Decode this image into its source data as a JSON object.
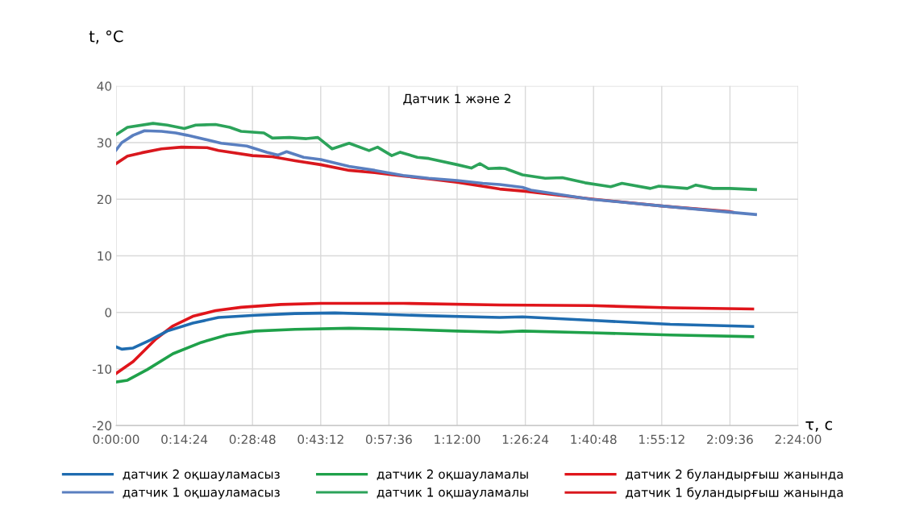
{
  "chart_data": {
    "type": "line",
    "title": "Датчик 1 және 2",
    "xlabel": "τ, с",
    "ylabel": "t, °С",
    "xlim": [
      0,
      2.4
    ],
    "xticks": [
      {
        "value": 0,
        "label": "0:00:00"
      },
      {
        "value": 0.24,
        "label": "0:14:24"
      },
      {
        "value": 0.48,
        "label": "0:28:48"
      },
      {
        "value": 0.72,
        "label": "0:43:12"
      },
      {
        "value": 0.96,
        "label": "0:57:36"
      },
      {
        "value": 1.2,
        "label": "1:12:00"
      },
      {
        "value": 1.44,
        "label": "1:26:24"
      },
      {
        "value": 1.68,
        "label": "1:40:48"
      },
      {
        "value": 1.92,
        "label": "1:55:12"
      },
      {
        "value": 2.16,
        "label": "2:09:36"
      },
      {
        "value": 2.4,
        "label": "2:24:00"
      }
    ],
    "ylim": [
      -20,
      40
    ],
    "yticks": [
      -20,
      -10,
      0,
      10,
      20,
      30,
      40
    ],
    "grid": true,
    "legend": "bottom",
    "line_style": "solid",
    "marker": "none",
    "series": [
      {
        "name": "датчик 2 оқшауламасыз",
        "color": "#1f6cb0",
        "x": [
          0,
          0.02,
          0.06,
          0.12,
          0.18,
          0.27,
          0.36,
          0.49,
          0.63,
          0.77,
          0.91,
          1.1,
          1.35,
          1.43,
          1.67,
          1.95,
          2.24
        ],
        "values": [
          -6.1,
          -6.5,
          -6.3,
          -4.9,
          -3.3,
          -1.9,
          -0.9,
          -0.5,
          -0.2,
          -0.1,
          -0.3,
          -0.6,
          -0.9,
          -0.8,
          -1.4,
          -2.1,
          -2.5
        ]
      },
      {
        "name": "датчик 1 оқшауламасыз",
        "color": "#5a7fc0",
        "x": [
          0,
          0.02,
          0.06,
          0.1,
          0.16,
          0.21,
          0.25,
          0.32,
          0.37,
          0.46,
          0.53,
          0.57,
          0.6,
          0.66,
          0.72,
          0.82,
          0.91,
          1.01,
          1.1,
          1.2,
          1.29,
          1.35,
          1.43,
          1.46,
          1.67,
          1.92,
          2.16,
          2.25
        ],
        "values": [
          28.7,
          30.0,
          31.3,
          32.1,
          32.0,
          31.7,
          31.3,
          30.5,
          29.9,
          29.4,
          28.3,
          27.8,
          28.4,
          27.4,
          27.0,
          25.8,
          25.1,
          24.2,
          23.7,
          23.3,
          22.8,
          22.6,
          22.1,
          21.6,
          20.0,
          18.8,
          17.7,
          17.3
        ]
      },
      {
        "name": "датчик 2 оқшауламалы",
        "color": "#1fa14a",
        "x": [
          0,
          0.04,
          0.11,
          0.2,
          0.3,
          0.39,
          0.49,
          0.63,
          0.82,
          1.01,
          1.2,
          1.35,
          1.43,
          1.67,
          1.95,
          2.24
        ],
        "values": [
          -12.3,
          -12.0,
          -10.1,
          -7.3,
          -5.3,
          -4.0,
          -3.3,
          -3.0,
          -2.8,
          -3.0,
          -3.3,
          -3.5,
          -3.3,
          -3.6,
          -4.0,
          -4.3
        ]
      },
      {
        "name": "датчик 1 оқшауламалы",
        "color": "#2ca35a",
        "x": [
          0,
          0.04,
          0.13,
          0.18,
          0.24,
          0.28,
          0.35,
          0.4,
          0.44,
          0.52,
          0.55,
          0.61,
          0.67,
          0.71,
          0.76,
          0.82,
          0.89,
          0.92,
          0.97,
          1.0,
          1.06,
          1.1,
          1.2,
          1.25,
          1.28,
          1.31,
          1.35,
          1.37,
          1.43,
          1.51,
          1.57,
          1.65,
          1.74,
          1.78,
          1.88,
          1.91,
          2.01,
          2.04,
          2.1,
          2.16,
          2.25
        ],
        "values": [
          31.4,
          32.7,
          33.4,
          33.1,
          32.5,
          33.1,
          33.2,
          32.7,
          32.0,
          31.7,
          30.8,
          30.9,
          30.7,
          30.9,
          28.9,
          29.9,
          28.6,
          29.2,
          27.7,
          28.3,
          27.4,
          27.2,
          26.1,
          25.5,
          26.3,
          25.4,
          25.5,
          25.4,
          24.3,
          23.7,
          23.8,
          22.9,
          22.2,
          22.8,
          21.9,
          22.3,
          21.9,
          22.5,
          21.9,
          21.9,
          21.7
        ]
      },
      {
        "name": "датчик 2 буландырғыш жанында",
        "color": "#e0151b",
        "x": [
          0,
          0.06,
          0.14,
          0.2,
          0.27,
          0.35,
          0.44,
          0.58,
          0.72,
          1.01,
          1.35,
          1.67,
          1.95,
          2.24
        ],
        "values": [
          -10.8,
          -8.7,
          -4.7,
          -2.4,
          -0.7,
          0.3,
          0.9,
          1.4,
          1.6,
          1.6,
          1.3,
          1.2,
          0.8,
          0.6
        ]
      },
      {
        "name": "датчик 1 буландырғыш жанында",
        "color": "#d9181e",
        "x": [
          0,
          0.04,
          0.09,
          0.16,
          0.23,
          0.32,
          0.36,
          0.48,
          0.55,
          0.63,
          0.72,
          0.82,
          0.91,
          1.01,
          1.1,
          1.2,
          1.35,
          1.44,
          1.68,
          1.92,
          2.16,
          2.17
        ],
        "values": [
          26.3,
          27.6,
          28.2,
          28.9,
          29.2,
          29.1,
          28.6,
          27.7,
          27.5,
          26.8,
          26.1,
          25.1,
          24.7,
          24.1,
          23.6,
          23.0,
          21.8,
          21.4,
          20.0,
          18.8,
          17.8,
          17.7
        ]
      }
    ]
  }
}
